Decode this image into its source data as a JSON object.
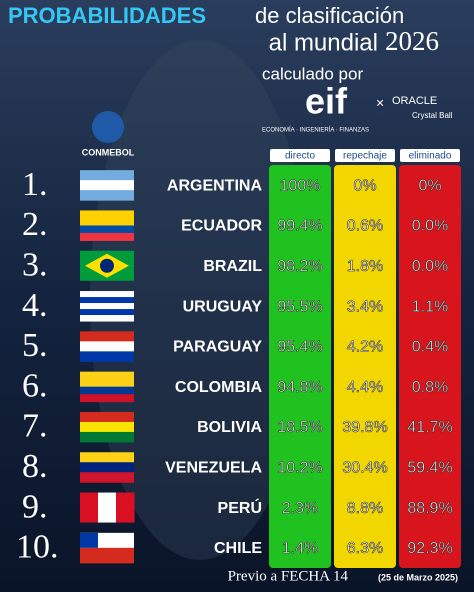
{
  "header": {
    "title_bold": "PROBABILIDADES",
    "title_rest": "de clasificación",
    "title_line2": "al mundial",
    "year": "2026",
    "credit": "calculado por",
    "logo": "eif",
    "tagline": "ECONOMÍA · INGENIERÍA · FINANZAS",
    "times": "×",
    "partner": "ORACLE",
    "partner_sub": "Crystal Ball",
    "federation": "CONMEBOL"
  },
  "table": {
    "columns": [
      "directo",
      "repechaje",
      "eliminado"
    ],
    "rows": [
      {
        "rank": "1.",
        "country": "ARGENTINA",
        "cells": [
          "100%",
          "0%",
          "0%"
        ]
      },
      {
        "rank": "2.",
        "country": "ECUADOR",
        "cells": [
          "99.4%",
          "0.6%",
          "0.0%"
        ]
      },
      {
        "rank": "3.",
        "country": "BRAZIL",
        "cells": [
          "98.2%",
          "1.8%",
          "0.0%"
        ]
      },
      {
        "rank": "4.",
        "country": "URUGUAY",
        "cells": [
          "95.5%",
          "3.4%",
          "1.1%"
        ]
      },
      {
        "rank": "5.",
        "country": "PARAGUAY",
        "cells": [
          "95.4%",
          "4.2%",
          "0.4%"
        ]
      },
      {
        "rank": "6.",
        "country": "COLOMBIA",
        "cells": [
          "94.8%",
          "4.4%",
          "0.8%"
        ]
      },
      {
        "rank": "7.",
        "country": "BOLIVIA",
        "cells": [
          "18.5%",
          "39.8%",
          "41.7%"
        ]
      },
      {
        "rank": "8.",
        "country": "VENEZUELA",
        "cells": [
          "10.2%",
          "30.4%",
          "59.4%"
        ]
      },
      {
        "rank": "9.",
        "country": "PERÚ",
        "cells": [
          "2.3%",
          "8.8%",
          "88.9%"
        ]
      },
      {
        "rank": "10.",
        "country": "CHILE",
        "cells": [
          "1.4%",
          "6.3%",
          "92.3%"
        ]
      }
    ]
  },
  "footer": {
    "note": "Previo a FECHA 14",
    "date": "(25 de Marzo 2025)"
  }
}
